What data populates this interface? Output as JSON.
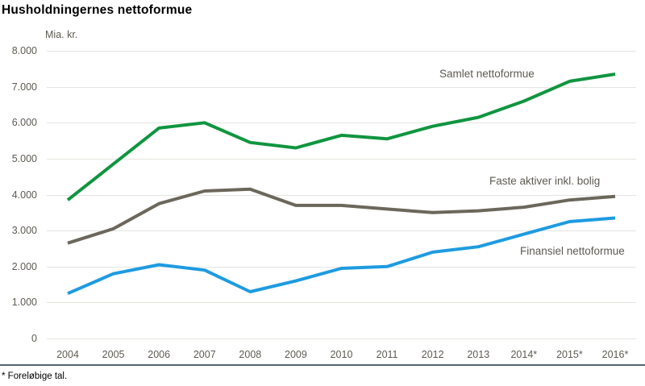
{
  "header": {
    "title": "Husholdningernes nettoformue"
  },
  "footer": {
    "note": "* Foreløbige tal."
  },
  "chart_data": {
    "type": "line",
    "title": "Husholdningernes nettoformue",
    "unit_label": "Mia. kr.",
    "categories": [
      "2004",
      "2005",
      "2006",
      "2007",
      "2008",
      "2009",
      "2010",
      "2011",
      "2012",
      "2013",
      "2014*",
      "2015*",
      "2016*"
    ],
    "series": [
      {
        "name": "Samlet nettoformue",
        "color": "#109540",
        "values": [
          3850,
          4850,
          5850,
          6000,
          5450,
          5300,
          5650,
          5550,
          5900,
          6150,
          6600,
          7150,
          7350
        ]
      },
      {
        "name": "Faste aktiver inkl. bolig",
        "color": "#6b675b",
        "values": [
          2650,
          3050,
          3750,
          4100,
          4150,
          3700,
          3700,
          3600,
          3500,
          3550,
          3650,
          3850,
          3950
        ]
      },
      {
        "name": "Finansiel nettoformue",
        "color": "#1e9be0",
        "values": [
          1250,
          1800,
          2050,
          1900,
          1300,
          1600,
          1950,
          2000,
          2400,
          2550,
          2900,
          3250,
          3350
        ]
      }
    ],
    "ylim": [
      0,
      8000
    ],
    "ytick_step": 1000,
    "ytick_labels_bottom_up": [
      "0",
      "1.000",
      "2.000",
      "3.000",
      "4.000",
      "5.000",
      "6.000",
      "7.000",
      "8.000"
    ],
    "grid": true,
    "legend_position": "inline-labels-near-lines",
    "colors": {
      "grid": "#e4e4e0",
      "axis_text": "#5e5a52",
      "title_text": "#000000",
      "bottom_rule": "#536471"
    }
  }
}
